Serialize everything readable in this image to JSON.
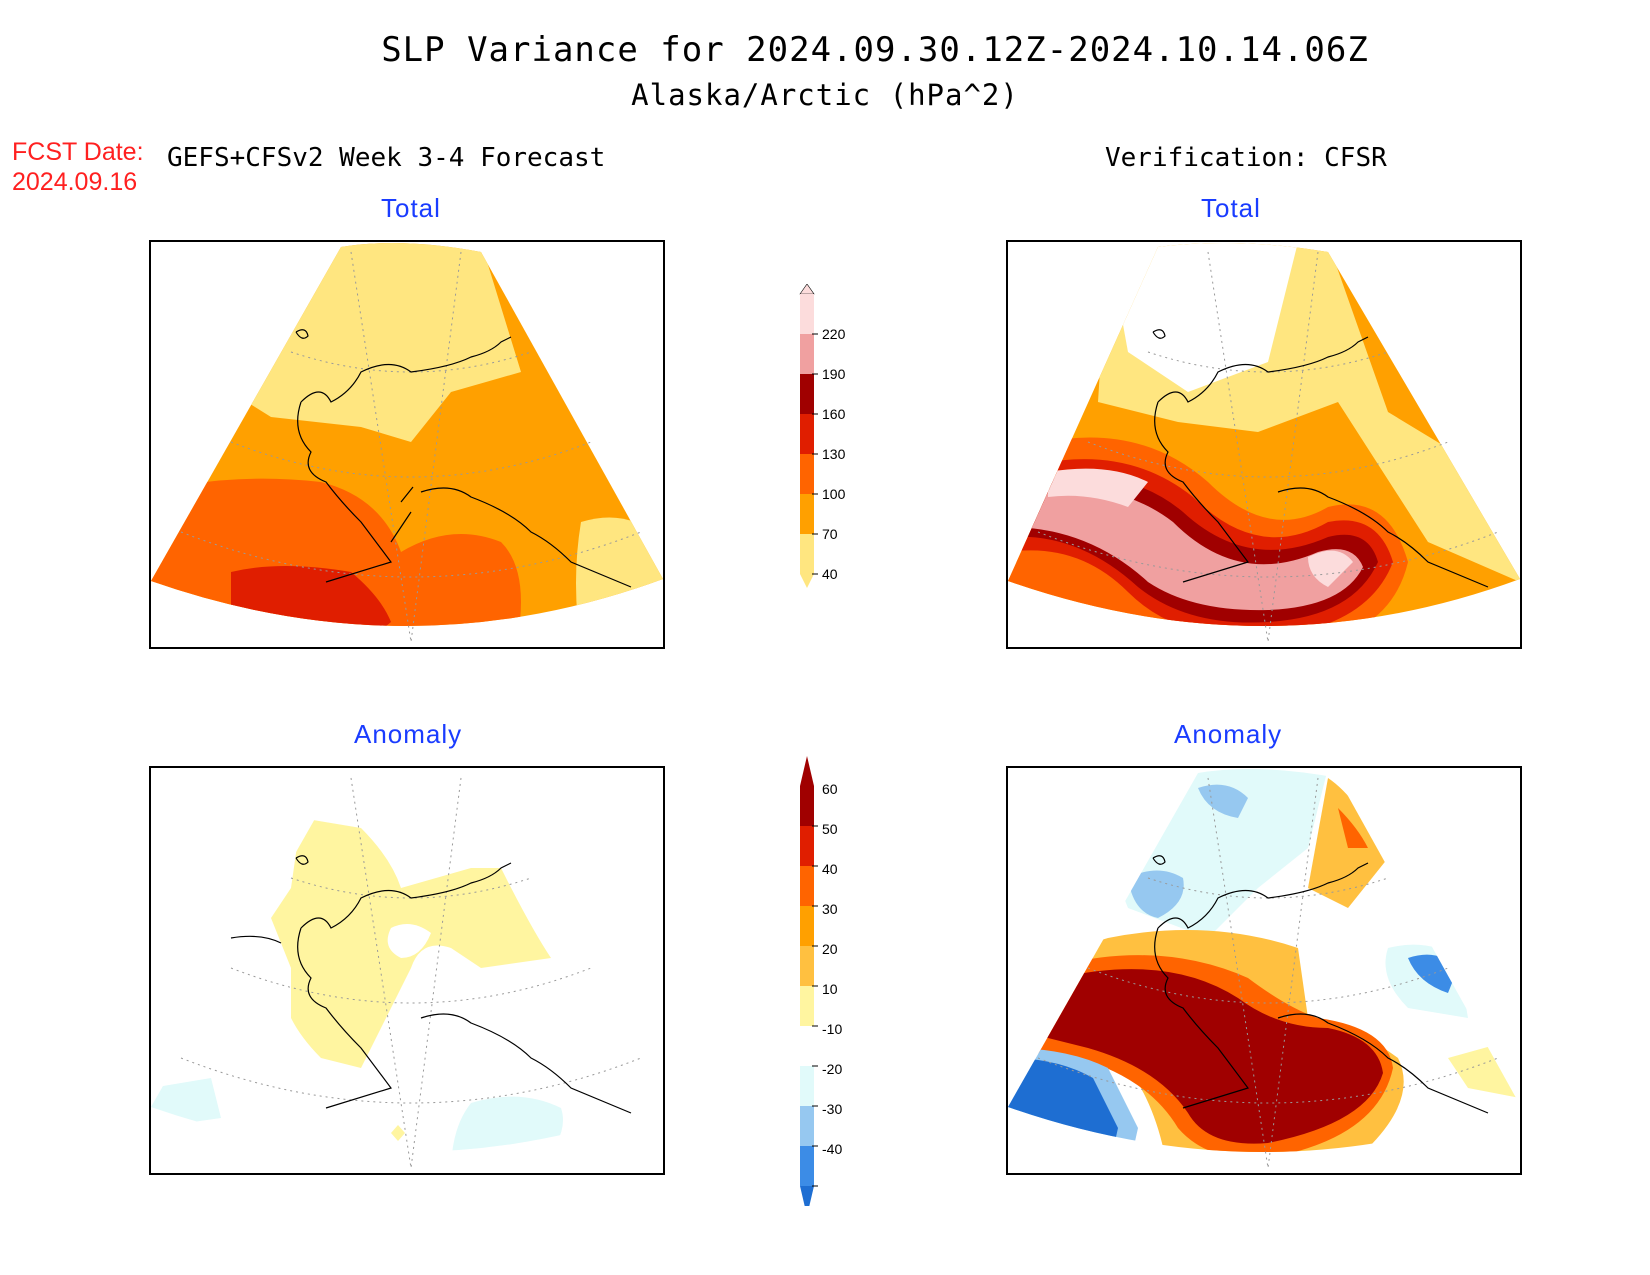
{
  "title": "SLP Variance for 2024.09.30.12Z-2024.10.14.06Z",
  "subtitle": "Alaska/Arctic (hPa^2)",
  "fcst_label": "FCST Date:",
  "fcst_date": "2024.09.16",
  "left_header": "GEFS+CFSv2 Week 3-4 Forecast",
  "right_header": "Verification: CFSR",
  "panels": {
    "forecast_total": "Total",
    "verify_total": "Total",
    "forecast_anomaly": "Anomaly",
    "verify_anomaly": "Anomaly"
  },
  "colorbars": {
    "total": {
      "labels": [
        "40",
        "70",
        "100",
        "130",
        "160",
        "190",
        "220"
      ],
      "colors": [
        "#ffe680",
        "#ffa000",
        "#ff6400",
        "#e01e00",
        "#a00000",
        "#f0a0a0",
        "#fcdcdc"
      ]
    },
    "anomaly": {
      "labels": [
        "-40",
        "-30",
        "-20",
        "-10",
        "10",
        "20",
        "30",
        "40",
        "50",
        "60"
      ],
      "colors": [
        "#1e6ed2",
        "#3c8ce6",
        "#96c8f0",
        "#c8e6fa",
        "#e1fafa",
        "#ffffff",
        "#fff5a0",
        "#ffc040",
        "#ffa000",
        "#ff6400",
        "#e01e00",
        "#a00000"
      ]
    }
  }
}
